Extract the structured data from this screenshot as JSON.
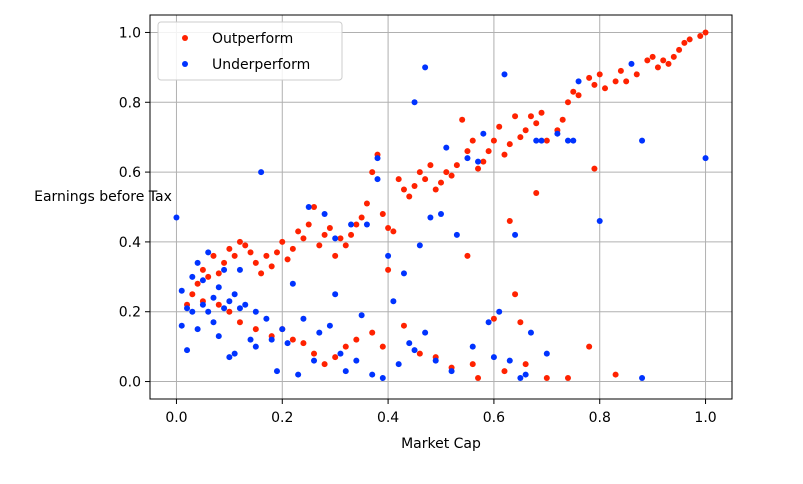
{
  "chart_data": {
    "type": "scatter",
    "title": "",
    "xlabel": "Market Cap",
    "ylabel": "Earnings before Tax",
    "xlim": [
      -0.05,
      1.05
    ],
    "ylim": [
      -0.05,
      1.05
    ],
    "xticks": [
      "0.0",
      "0.2",
      "0.4",
      "0.6",
      "0.8",
      "1.0"
    ],
    "yticks": [
      "0.0",
      "0.2",
      "0.4",
      "0.6",
      "0.8",
      "1.0"
    ],
    "grid": true,
    "legend_position": "top-left",
    "series": [
      {
        "name": "Outperform",
        "color": "#ff2200",
        "points": [
          [
            1.0,
            1.0
          ],
          [
            0.99,
            0.99
          ],
          [
            0.97,
            0.98
          ],
          [
            0.96,
            0.97
          ],
          [
            0.95,
            0.95
          ],
          [
            0.94,
            0.93
          ],
          [
            0.93,
            0.91
          ],
          [
            0.92,
            0.92
          ],
          [
            0.91,
            0.9
          ],
          [
            0.9,
            0.93
          ],
          [
            0.89,
            0.92
          ],
          [
            0.87,
            0.88
          ],
          [
            0.85,
            0.86
          ],
          [
            0.84,
            0.89
          ],
          [
            0.83,
            0.86
          ],
          [
            0.81,
            0.84
          ],
          [
            0.8,
            0.88
          ],
          [
            0.79,
            0.85
          ],
          [
            0.78,
            0.87
          ],
          [
            0.76,
            0.82
          ],
          [
            0.75,
            0.83
          ],
          [
            0.74,
            0.8
          ],
          [
            0.73,
            0.75
          ],
          [
            0.72,
            0.72
          ],
          [
            0.7,
            0.69
          ],
          [
            0.69,
            0.77
          ],
          [
            0.68,
            0.74
          ],
          [
            0.67,
            0.76
          ],
          [
            0.66,
            0.72
          ],
          [
            0.65,
            0.7
          ],
          [
            0.64,
            0.76
          ],
          [
            0.63,
            0.68
          ],
          [
            0.62,
            0.65
          ],
          [
            0.61,
            0.73
          ],
          [
            0.6,
            0.69
          ],
          [
            0.59,
            0.66
          ],
          [
            0.58,
            0.63
          ],
          [
            0.57,
            0.61
          ],
          [
            0.56,
            0.69
          ],
          [
            0.55,
            0.66
          ],
          [
            0.54,
            0.75
          ],
          [
            0.53,
            0.62
          ],
          [
            0.52,
            0.59
          ],
          [
            0.51,
            0.6
          ],
          [
            0.5,
            0.57
          ],
          [
            0.49,
            0.55
          ],
          [
            0.48,
            0.62
          ],
          [
            0.47,
            0.58
          ],
          [
            0.46,
            0.6
          ],
          [
            0.45,
            0.56
          ],
          [
            0.44,
            0.53
          ],
          [
            0.43,
            0.55
          ],
          [
            0.42,
            0.58
          ],
          [
            0.41,
            0.43
          ],
          [
            0.4,
            0.44
          ],
          [
            0.39,
            0.48
          ],
          [
            0.38,
            0.65
          ],
          [
            0.37,
            0.6
          ],
          [
            0.36,
            0.51
          ],
          [
            0.35,
            0.47
          ],
          [
            0.34,
            0.45
          ],
          [
            0.33,
            0.42
          ],
          [
            0.32,
            0.39
          ],
          [
            0.31,
            0.41
          ],
          [
            0.3,
            0.36
          ],
          [
            0.29,
            0.44
          ],
          [
            0.28,
            0.42
          ],
          [
            0.27,
            0.39
          ],
          [
            0.26,
            0.5
          ],
          [
            0.25,
            0.45
          ],
          [
            0.24,
            0.41
          ],
          [
            0.23,
            0.43
          ],
          [
            0.22,
            0.38
          ],
          [
            0.21,
            0.35
          ],
          [
            0.2,
            0.4
          ],
          [
            0.19,
            0.37
          ],
          [
            0.18,
            0.33
          ],
          [
            0.17,
            0.36
          ],
          [
            0.16,
            0.31
          ],
          [
            0.15,
            0.34
          ],
          [
            0.14,
            0.37
          ],
          [
            0.13,
            0.39
          ],
          [
            0.12,
            0.4
          ],
          [
            0.11,
            0.36
          ],
          [
            0.1,
            0.38
          ],
          [
            0.09,
            0.34
          ],
          [
            0.08,
            0.31
          ],
          [
            0.07,
            0.36
          ],
          [
            0.06,
            0.3
          ],
          [
            0.05,
            0.32
          ],
          [
            0.04,
            0.28
          ],
          [
            0.03,
            0.25
          ],
          [
            0.02,
            0.22
          ],
          [
            0.05,
            0.23
          ],
          [
            0.08,
            0.22
          ],
          [
            0.1,
            0.2
          ],
          [
            0.12,
            0.17
          ],
          [
            0.15,
            0.15
          ],
          [
            0.18,
            0.13
          ],
          [
            0.2,
            0.15
          ],
          [
            0.22,
            0.12
          ],
          [
            0.24,
            0.11
          ],
          [
            0.26,
            0.08
          ],
          [
            0.28,
            0.05
          ],
          [
            0.3,
            0.07
          ],
          [
            0.32,
            0.1
          ],
          [
            0.34,
            0.12
          ],
          [
            0.37,
            0.14
          ],
          [
            0.39,
            0.1
          ],
          [
            0.4,
            0.32
          ],
          [
            0.43,
            0.16
          ],
          [
            0.46,
            0.08
          ],
          [
            0.49,
            0.07
          ],
          [
            0.52,
            0.04
          ],
          [
            0.55,
            0.36
          ],
          [
            0.56,
            0.05
          ],
          [
            0.57,
            0.01
          ],
          [
            0.6,
            0.18
          ],
          [
            0.62,
            0.03
          ],
          [
            0.63,
            0.46
          ],
          [
            0.64,
            0.25
          ],
          [
            0.65,
            0.17
          ],
          [
            0.66,
            0.05
          ],
          [
            0.68,
            0.54
          ],
          [
            0.7,
            0.01
          ],
          [
            0.74,
            0.01
          ],
          [
            0.78,
            0.1
          ],
          [
            0.79,
            0.61
          ],
          [
            0.83,
            0.02
          ]
        ]
      },
      {
        "name": "Underperform",
        "color": "#0033ff",
        "points": [
          [
            0.0,
            0.47
          ],
          [
            0.01,
            0.26
          ],
          [
            0.01,
            0.16
          ],
          [
            0.02,
            0.21
          ],
          [
            0.02,
            0.09
          ],
          [
            0.03,
            0.3
          ],
          [
            0.03,
            0.2
          ],
          [
            0.04,
            0.34
          ],
          [
            0.04,
            0.15
          ],
          [
            0.05,
            0.22
          ],
          [
            0.05,
            0.29
          ],
          [
            0.06,
            0.37
          ],
          [
            0.06,
            0.2
          ],
          [
            0.07,
            0.24
          ],
          [
            0.07,
            0.17
          ],
          [
            0.08,
            0.27
          ],
          [
            0.08,
            0.13
          ],
          [
            0.09,
            0.21
          ],
          [
            0.09,
            0.32
          ],
          [
            0.1,
            0.07
          ],
          [
            0.1,
            0.23
          ],
          [
            0.11,
            0.25
          ],
          [
            0.11,
            0.08
          ],
          [
            0.12,
            0.21
          ],
          [
            0.12,
            0.32
          ],
          [
            0.13,
            0.22
          ],
          [
            0.14,
            0.12
          ],
          [
            0.15,
            0.1
          ],
          [
            0.15,
            0.2
          ],
          [
            0.16,
            0.6
          ],
          [
            0.17,
            0.18
          ],
          [
            0.18,
            0.12
          ],
          [
            0.19,
            0.03
          ],
          [
            0.2,
            0.15
          ],
          [
            0.21,
            0.11
          ],
          [
            0.22,
            0.28
          ],
          [
            0.23,
            0.02
          ],
          [
            0.24,
            0.18
          ],
          [
            0.25,
            0.5
          ],
          [
            0.26,
            0.06
          ],
          [
            0.27,
            0.14
          ],
          [
            0.28,
            0.48
          ],
          [
            0.29,
            0.16
          ],
          [
            0.3,
            0.41
          ],
          [
            0.3,
            0.25
          ],
          [
            0.31,
            0.08
          ],
          [
            0.32,
            0.03
          ],
          [
            0.33,
            0.45
          ],
          [
            0.34,
            0.06
          ],
          [
            0.35,
            0.19
          ],
          [
            0.36,
            0.45
          ],
          [
            0.37,
            0.02
          ],
          [
            0.38,
            0.58
          ],
          [
            0.38,
            0.64
          ],
          [
            0.39,
            0.01
          ],
          [
            0.4,
            0.36
          ],
          [
            0.41,
            0.23
          ],
          [
            0.42,
            0.05
          ],
          [
            0.43,
            0.31
          ],
          [
            0.44,
            0.11
          ],
          [
            0.45,
            0.8
          ],
          [
            0.45,
            0.09
          ],
          [
            0.46,
            0.39
          ],
          [
            0.47,
            0.14
          ],
          [
            0.47,
            0.9
          ],
          [
            0.48,
            0.47
          ],
          [
            0.49,
            0.06
          ],
          [
            0.5,
            0.48
          ],
          [
            0.51,
            0.67
          ],
          [
            0.52,
            0.03
          ],
          [
            0.53,
            0.42
          ],
          [
            0.55,
            0.64
          ],
          [
            0.56,
            0.1
          ],
          [
            0.57,
            0.63
          ],
          [
            0.58,
            0.71
          ],
          [
            0.59,
            0.17
          ],
          [
            0.6,
            0.07
          ],
          [
            0.61,
            0.2
          ],
          [
            0.62,
            0.88
          ],
          [
            0.63,
            0.06
          ],
          [
            0.64,
            0.42
          ],
          [
            0.65,
            0.01
          ],
          [
            0.66,
            0.02
          ],
          [
            0.67,
            0.14
          ],
          [
            0.68,
            0.69
          ],
          [
            0.69,
            0.69
          ],
          [
            0.7,
            0.08
          ],
          [
            0.72,
            0.71
          ],
          [
            0.74,
            0.69
          ],
          [
            0.75,
            0.69
          ],
          [
            0.76,
            0.86
          ],
          [
            0.8,
            0.46
          ],
          [
            0.86,
            0.91
          ],
          [
            0.88,
            0.01
          ],
          [
            0.88,
            0.69
          ],
          [
            1.0,
            0.64
          ]
        ]
      }
    ]
  }
}
